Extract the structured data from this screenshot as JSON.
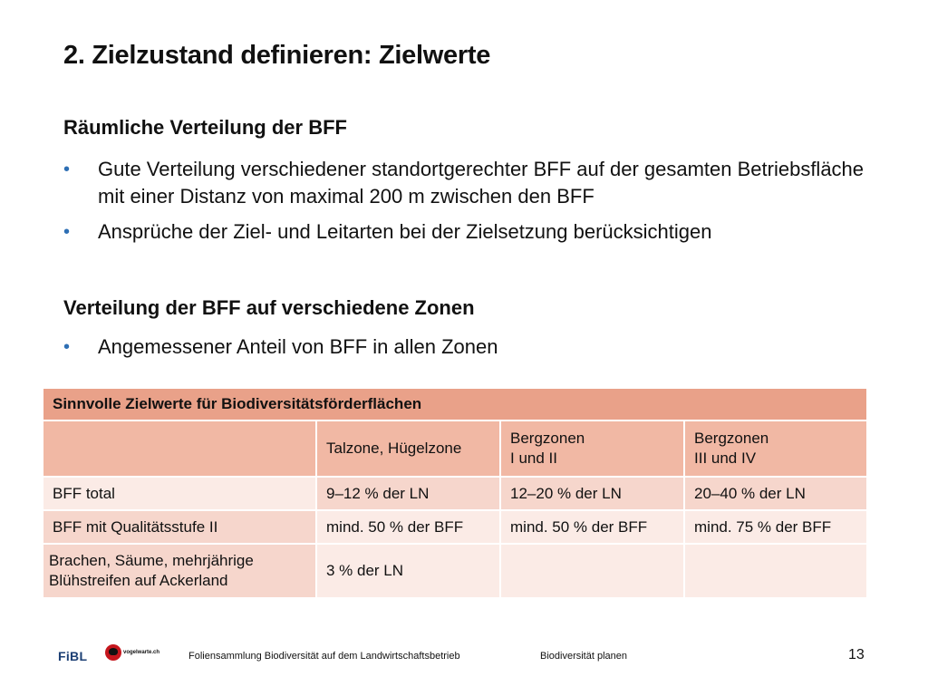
{
  "title": "2. Zielzustand definieren: Zielwerte",
  "section1": {
    "heading": "Räumliche Verteilung der BFF",
    "bullets": [
      "Gute Verteilung verschiedener standortgerechter BFF auf der gesamten Betriebsfläche mit einer Distanz von maximal 200 m zwischen den BFF",
      "Ansprüche der Ziel- und Leitarten bei der Zielsetzung berücksichtigen"
    ]
  },
  "section2": {
    "heading": "Verteilung der BFF auf verschiedene Zonen",
    "bullets": [
      "Angemessener Anteil von BFF in allen Zonen"
    ]
  },
  "table": {
    "title": "Sinnvolle Zielwerte für Biodiversitätsförderflächen",
    "columns": [
      "",
      "Talzone, Hügelzone",
      "Bergzonen\nI und II",
      "Bergzonen\nIII und IV"
    ],
    "col2_line1": "Bergzonen",
    "col2_line2": "I und II",
    "col3_line1": "Bergzonen",
    "col3_line2": "III und IV",
    "rows": [
      {
        "label": "BFF total",
        "values": [
          "9–12 % der LN",
          "12–20 % der LN",
          "20–40 % der LN"
        ]
      },
      {
        "label": "BFF mit Qualitätsstufe II",
        "values": [
          "mind. 50 % der BFF",
          "mind. 50 % der BFF",
          "mind. 75 % der BFF"
        ]
      },
      {
        "label_line1": "Brachen, Säume, mehrjährige",
        "label_line2": "Blühstreifen auf Ackerland",
        "values": [
          "3 % der LN",
          "",
          ""
        ]
      }
    ]
  },
  "footer": {
    "logo_fibl": "FiBL",
    "logo_vogel": "vogelwarte.ch",
    "collection": "Foliensammlung Biodiversität auf dem Landwirtschaftsbetrieb",
    "topic": "Biodiversität planen",
    "page_number": "13"
  },
  "colors": {
    "bullet": "#2e6fb4",
    "table_header": "#e9a189",
    "table_subheader": "#f1b8a4",
    "table_row_dark": "#f6d6cc",
    "table_row_light": "#fbebe6"
  }
}
